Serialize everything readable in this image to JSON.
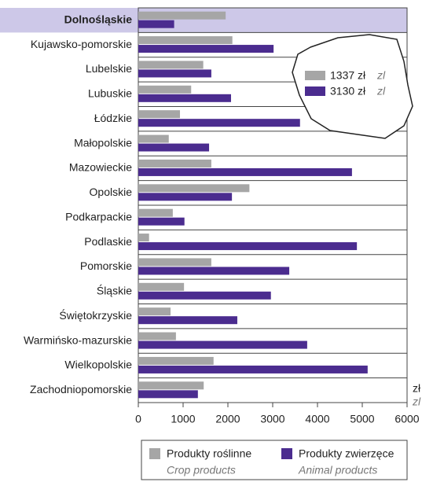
{
  "chart_data": {
    "type": "bar",
    "orientation": "horizontal",
    "categories": [
      "Dolnośląskie",
      "Kujawsko-pomorskie",
      "Lubelskie",
      "Lubuskie",
      "Łódzkie",
      "Małopolskie",
      "Mazowieckie",
      "Opolskie",
      "Podkarpackie",
      "Podlaskie",
      "Pomorskie",
      "Śląskie",
      "Świętokrzyskie",
      "Warmińsko-mazurskie",
      "Wielkopolskie",
      "Zachodniopomorskie"
    ],
    "highlight_index": 0,
    "highlight_color": "#cdc8e8",
    "series": [
      {
        "name": "Produkty roślinne",
        "name_en": "Crop products",
        "color": "#a6a6a6",
        "average_label": "1337 zł",
        "average_unit_en": "zl",
        "values": [
          1950,
          2100,
          1450,
          1180,
          930,
          680,
          1630,
          2480,
          770,
          240,
          1630,
          1020,
          720,
          840,
          1680,
          1460
        ]
      },
      {
        "name": "Produkty zwierzęce",
        "name_en": "Animal products",
        "color": "#4b2c8f",
        "average_label": "3130 zł",
        "average_unit_en": "zl",
        "values": [
          800,
          3020,
          1630,
          2070,
          3610,
          1580,
          4770,
          2090,
          1030,
          4880,
          3370,
          2960,
          2210,
          3770,
          5120,
          1330
        ]
      }
    ],
    "xlim": [
      0,
      6000
    ],
    "xticks": [
      0,
      1000,
      2000,
      3000,
      4000,
      5000,
      6000
    ],
    "xlabel": "zł",
    "xlabel_en": "zl"
  }
}
